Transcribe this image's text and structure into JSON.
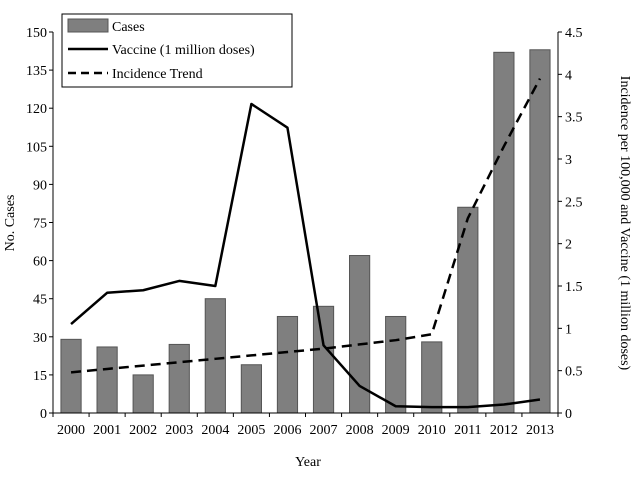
{
  "chart_data": {
    "type": "bar",
    "xlabel": "Year",
    "ylabel_left": "No. Cases",
    "ylabel_right": "Incidence per 100,000 and Vaccine (1 million doses)",
    "ylim_left": [
      0,
      150
    ],
    "ylim_right": [
      0,
      4.5
    ],
    "yticks_left": [
      "0",
      "15",
      "30",
      "45",
      "60",
      "75",
      "90",
      "105",
      "120",
      "135",
      "150"
    ],
    "yticks_right": [
      "0",
      "0.5",
      "1",
      "1.5",
      "2",
      "2.5",
      "3",
      "3.5",
      "4",
      "4.5"
    ],
    "categories": [
      "2000",
      "2001",
      "2002",
      "2003",
      "2004",
      "2005",
      "2006",
      "2007",
      "2008",
      "2009",
      "2010",
      "2011",
      "2012",
      "2013"
    ],
    "grid": false,
    "legend_placement": "top-left",
    "series": [
      {
        "name": "Cases",
        "kind": "bar",
        "axis": "left",
        "color": "#7f7f7f",
        "values": [
          29,
          26,
          15,
          27,
          45,
          19,
          38,
          42,
          62,
          38,
          28,
          81,
          142,
          143
        ]
      },
      {
        "name": "Vaccine (1 million doses)",
        "kind": "line",
        "axis": "right",
        "color": "#000000",
        "dash": "solid",
        "values": [
          1.05,
          1.42,
          1.45,
          1.56,
          1.5,
          3.65,
          3.37,
          0.8,
          0.32,
          0.08,
          0.07,
          0.07,
          0.1,
          0.16
        ]
      },
      {
        "name": "Incidence Trend",
        "kind": "line",
        "axis": "right",
        "color": "#000000",
        "dash": "dashed",
        "values": [
          0.48,
          0.52,
          0.56,
          0.6,
          0.64,
          0.68,
          0.72,
          0.76,
          0.81,
          0.86,
          0.93,
          2.3,
          3.15,
          3.95
        ]
      }
    ]
  }
}
